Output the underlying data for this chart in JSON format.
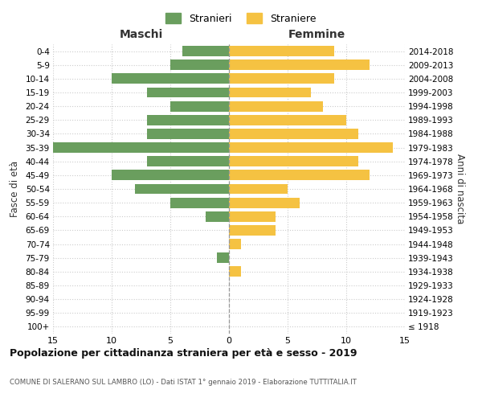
{
  "age_groups": [
    "100+",
    "95-99",
    "90-94",
    "85-89",
    "80-84",
    "75-79",
    "70-74",
    "65-69",
    "60-64",
    "55-59",
    "50-54",
    "45-49",
    "40-44",
    "35-39",
    "30-34",
    "25-29",
    "20-24",
    "15-19",
    "10-14",
    "5-9",
    "0-4"
  ],
  "birth_years": [
    "≤ 1918",
    "1919-1923",
    "1924-1928",
    "1929-1933",
    "1934-1938",
    "1939-1943",
    "1944-1948",
    "1949-1953",
    "1954-1958",
    "1959-1963",
    "1964-1968",
    "1969-1973",
    "1974-1978",
    "1979-1983",
    "1984-1988",
    "1989-1993",
    "1994-1998",
    "1999-2003",
    "2004-2008",
    "2009-2013",
    "2014-2018"
  ],
  "males": [
    0,
    0,
    0,
    0,
    0,
    1,
    0,
    0,
    2,
    5,
    8,
    10,
    7,
    15,
    7,
    7,
    5,
    7,
    10,
    5,
    4
  ],
  "females": [
    0,
    0,
    0,
    0,
    1,
    0,
    1,
    4,
    4,
    6,
    5,
    12,
    11,
    14,
    11,
    10,
    8,
    7,
    9,
    12,
    9
  ],
  "male_color": "#6a9e5e",
  "female_color": "#f5c242",
  "male_label": "Stranieri",
  "female_label": "Straniere",
  "title": "Popolazione per cittadinanza straniera per età e sesso - 2019",
  "subtitle": "COMUNE DI SALERANO SUL LAMBRO (LO) - Dati ISTAT 1° gennaio 2019 - Elaborazione TUTTITALIA.IT",
  "left_header": "Maschi",
  "right_header": "Femmine",
  "y_left_label": "Fasce di età",
  "y_right_label": "Anni di nascita",
  "xlim": 15,
  "background_color": "#ffffff",
  "grid_color": "#cccccc"
}
